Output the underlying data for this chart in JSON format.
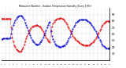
{
  "title": "Milwaukee Weather - Outdoor Temperature/Humidity (Every 5 Min)",
  "bg_color": "#ffffff",
  "grid_color": "#aaaaaa",
  "line1_color": "#dd0000",
  "line2_color": "#0000cc",
  "ylim": [
    20,
    100
  ],
  "figsize": [
    1.6,
    0.87
  ],
  "dpi": 100,
  "temp_data": [
    84,
    84,
    84,
    84,
    83,
    83,
    84,
    84,
    84,
    84,
    70,
    55,
    48,
    43,
    40,
    37,
    35,
    34,
    33,
    33,
    34,
    36,
    39,
    44,
    49,
    53,
    57,
    61,
    64,
    67,
    69,
    71,
    72,
    73,
    73,
    74,
    74,
    73,
    72,
    71,
    69,
    67,
    64,
    61,
    58,
    55,
    52,
    50,
    48,
    47,
    65,
    72,
    76,
    79,
    81,
    82,
    83,
    84,
    84,
    85,
    85,
    84,
    83,
    82,
    80,
    78,
    75,
    72,
    69,
    66,
    63,
    60,
    57,
    55,
    53,
    51,
    50,
    48,
    47,
    46,
    45,
    44,
    44,
    43,
    43,
    43,
    43,
    43,
    43,
    44,
    45,
    46,
    47,
    49,
    51,
    53,
    56,
    59,
    62,
    65,
    68,
    71,
    74,
    76,
    78,
    79,
    80,
    80,
    80,
    79
  ],
  "hum_data": [
    52,
    52,
    53,
    53,
    53,
    53,
    53,
    53,
    53,
    54,
    60,
    68,
    74,
    78,
    81,
    84,
    86,
    87,
    88,
    88,
    88,
    87,
    85,
    82,
    78,
    74,
    70,
    66,
    62,
    58,
    54,
    51,
    49,
    47,
    45,
    44,
    44,
    44,
    45,
    47,
    49,
    51,
    54,
    58,
    62,
    66,
    70,
    74,
    77,
    79,
    64,
    57,
    52,
    48,
    45,
    43,
    42,
    41,
    40,
    40,
    40,
    41,
    41,
    42,
    43,
    45,
    47,
    50,
    53,
    56,
    60,
    64,
    68,
    71,
    74,
    77,
    79,
    80,
    81,
    82,
    82,
    82,
    82,
    82,
    82,
    82,
    81,
    80,
    79,
    78,
    76,
    74,
    72,
    69,
    67,
    64,
    61,
    57,
    54,
    51,
    48,
    45,
    43,
    41,
    40,
    39,
    38,
    38,
    38,
    39
  ],
  "yticks": [
    30,
    40,
    50,
    60,
    70,
    80,
    90
  ],
  "num_xticks": 28
}
